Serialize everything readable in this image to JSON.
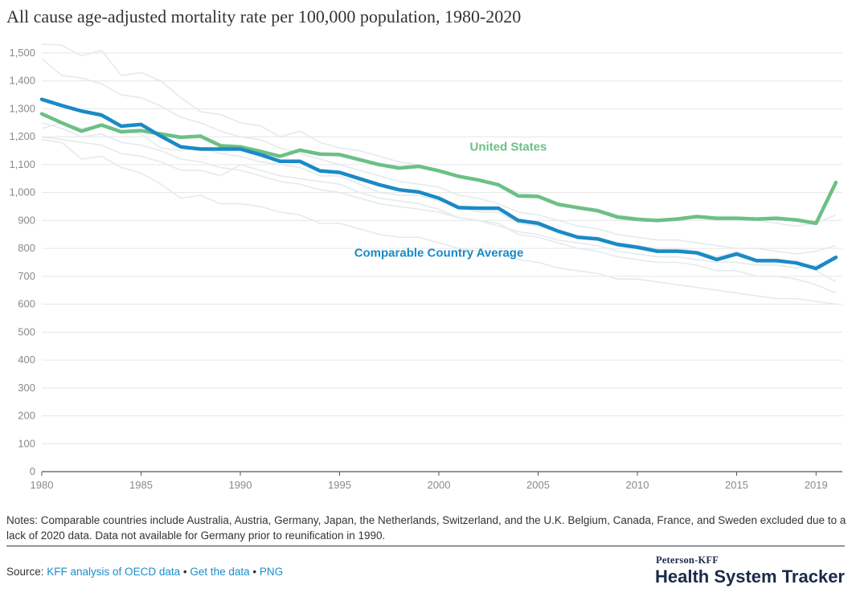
{
  "title": "All cause age-adjusted mortality rate per 100,000 population, 1980-2020",
  "notes": "Notes: Comparable countries include Australia, Austria, Germany, Japan, the Netherlands, Switzerland, and the U.K. Belgium, Canada, France, and Sweden excluded due to a lack of 2020 data. Data not available for Germany prior to reunification in 1990.",
  "source": {
    "prefix": "Source: ",
    "links": [
      "KFF analysis of OECD data",
      "Get the data",
      "PNG"
    ],
    "separator": " • "
  },
  "brand": {
    "top": "Peterson-KFF",
    "main": "Health System Tracker"
  },
  "colors": {
    "us": "#6cc084",
    "avg": "#1a8ac6",
    "background_lines": "#e4eaee",
    "grid": "#e6e6e6",
    "axis": "#555555"
  },
  "chart_data": {
    "type": "line",
    "xlim": [
      1980,
      2020
    ],
    "ylim": [
      0,
      1500
    ],
    "x_ticks": [
      1980,
      1985,
      1990,
      1995,
      2000,
      2005,
      2010,
      2015,
      2019
    ],
    "y_ticks": [
      0,
      100,
      200,
      300,
      400,
      500,
      600,
      700,
      800,
      900,
      1000,
      1100,
      1200,
      1300,
      1400,
      1500
    ],
    "y_tick_labels": [
      "0",
      "100",
      "200",
      "300",
      "400",
      "500",
      "600",
      "700",
      "800",
      "900",
      "1,000",
      "1,100",
      "1,200",
      "1,300",
      "1,400",
      "1,500"
    ],
    "grid": "horizontal",
    "x": [
      1980,
      1981,
      1982,
      1983,
      1984,
      1985,
      1986,
      1987,
      1988,
      1989,
      1990,
      1991,
      1992,
      1993,
      1994,
      1995,
      1996,
      1997,
      1998,
      1999,
      2000,
      2001,
      2002,
      2003,
      2004,
      2005,
      2006,
      2007,
      2008,
      2009,
      2010,
      2011,
      2012,
      2013,
      2014,
      2015,
      2016,
      2017,
      2018,
      2019,
      2020
    ],
    "series": [
      {
        "name": "United States",
        "label_position": [
          2003.5,
          1150
        ],
        "values": [
          1282,
          1250,
          1220,
          1242,
          1218,
          1222,
          1210,
          1198,
          1202,
          1168,
          1164,
          1148,
          1130,
          1152,
          1138,
          1136,
          1118,
          1100,
          1088,
          1094,
          1078,
          1058,
          1045,
          1028,
          988,
          986,
          958,
          946,
          935,
          912,
          904,
          900,
          905,
          914,
          908,
          908,
          905,
          908,
          902,
          890,
          1036
        ]
      },
      {
        "name": "Comparable Country Average",
        "label_position": [
          2000,
          770
        ],
        "values": [
          1334,
          1312,
          1292,
          1278,
          1238,
          1244,
          1202,
          1164,
          1156,
          1156,
          1156,
          1136,
          1112,
          1112,
          1078,
          1072,
          1050,
          1028,
          1010,
          1002,
          980,
          946,
          944,
          944,
          900,
          890,
          862,
          840,
          834,
          814,
          804,
          790,
          790,
          784,
          760,
          780,
          756,
          756,
          748,
          728,
          768
        ]
      }
    ],
    "background_series": [
      {
        "values": [
          1532,
          1528,
          1490,
          1510,
          1420,
          1430,
          1400,
          1340,
          1290,
          1280,
          1250,
          1240,
          1200,
          1220,
          1180,
          1160,
          1150,
          1130,
          1110,
          1100,
          1080,
          1060,
          1050,
          1030,
          1000,
          990,
          960,
          950,
          940,
          920,
          910,
          900,
          900,
          910,
          900,
          900,
          900,
          890,
          880,
          890,
          920
        ]
      },
      {
        "values": [
          1480,
          1420,
          1410,
          1390,
          1350,
          1340,
          1310,
          1270,
          1250,
          1220,
          1200,
          1190,
          1160,
          1140,
          1120,
          1100,
          1080,
          1060,
          1040,
          1030,
          1020,
          990,
          980,
          960,
          930,
          920,
          900,
          880,
          870,
          850,
          840,
          830,
          830,
          820,
          810,
          800,
          800,
          790,
          780,
          790,
          810
        ]
      },
      {
        "values": [
          1250,
          1230,
          1200,
          1210,
          1180,
          1170,
          1150,
          1120,
          1110,
          1090,
          1080,
          1060,
          1040,
          1030,
          1010,
          1000,
          980,
          960,
          950,
          940,
          930,
          910,
          900,
          880,
          860,
          850,
          830,
          820,
          810,
          790,
          780,
          770,
          770,
          760,
          750,
          750,
          740,
          740,
          730,
          740,
          760
        ]
      },
      {
        "values": [
          1190,
          1180,
          1120,
          1130,
          1090,
          1070,
          1030,
          980,
          990,
          960,
          960,
          950,
          930,
          920,
          890,
          890,
          870,
          850,
          840,
          840,
          820,
          800,
          790,
          780,
          760,
          750,
          730,
          720,
          710,
          690,
          690,
          680,
          670,
          660,
          650,
          640,
          630,
          620,
          620,
          610,
          600
        ]
      },
      {
        "values": [
          1230,
          1250,
          1230,
          1240,
          1220,
          1210,
          1160,
          1150,
          1160,
          1140,
          1130,
          1110,
          1100,
          1090,
          1060,
          1060,
          1030,
          1000,
          990,
          990,
          970,
          950,
          930,
          930,
          890,
          880,
          860,
          840,
          840,
          820,
          810,
          800,
          800,
          790,
          770,
          790,
          760,
          760,
          750,
          720,
          680
        ]
      },
      {
        "values": [
          1200,
          1190,
          1180,
          1170,
          1140,
          1130,
          1110,
          1080,
          1080,
          1060,
          1100,
          1080,
          1060,
          1050,
          1040,
          1030,
          1000,
          980,
          970,
          960,
          940,
          910,
          900,
          890,
          850,
          840,
          820,
          800,
          790,
          770,
          760,
          750,
          750,
          740,
          720,
          720,
          700,
          700,
          690,
          670,
          640
        ]
      }
    ]
  }
}
